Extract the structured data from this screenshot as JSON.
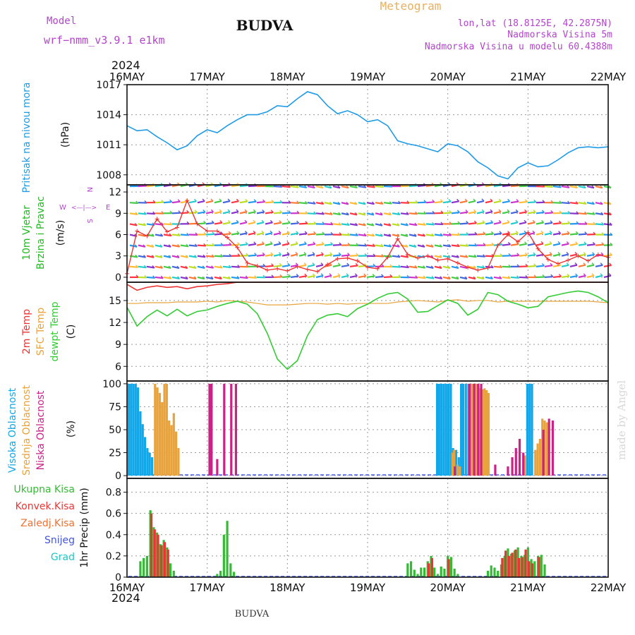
{
  "header": {
    "model_label": "Model",
    "model_name": "wrf−nmm_v3.9.1  e1km",
    "station_title": "BUDVA",
    "meteogram_label": "Meteogram",
    "location": "lon,lat (18.8125E, 42.2875N)",
    "elevation": "Nadmorska Visina 5m",
    "model_elevation": "Nadmorska Visina u modelu 60.4388m",
    "year_top": "2024",
    "year_bottom": "2024",
    "footer_title": "BUDVA",
    "watermark": "made by Angel"
  },
  "dates": [
    "16MAY",
    "17MAY",
    "18MAY",
    "19MAY",
    "20MAY",
    "21MAY",
    "22MAY"
  ],
  "colors": {
    "pressure": "#1e9be6",
    "wind_speed_title": "#22bb22",
    "temp2m": "#ee3333",
    "sfc_temp": "#e8a33c",
    "dewpoint": "#33cc33",
    "high_cloud": "#11a7e8",
    "mid_cloud": "#e8a33c",
    "low_cloud": "#cc2288",
    "total_rain": "#33bb33",
    "conv_rain": "#ee3333",
    "freezing_rain": "#f07030",
    "snow": "#4455dd",
    "hail": "#22c4c4",
    "purple_text": "#b344cc"
  },
  "chart_data": [
    {
      "type": "line",
      "name": "pressure",
      "ylabel": [
        "Pritisak na nivou mora",
        "(hPa)"
      ],
      "yticks": [
        1008,
        1011,
        1014,
        1017
      ],
      "ylim": [
        1007,
        1017
      ],
      "grid": true,
      "x_hours": [
        0,
        3,
        6,
        9,
        12,
        15,
        18,
        21,
        24,
        27,
        30,
        33,
        36,
        39,
        42,
        45,
        48,
        51,
        54,
        57,
        60,
        63,
        66,
        69,
        72,
        75,
        78,
        81,
        84,
        87,
        90,
        93,
        96,
        99,
        102,
        105,
        108,
        111,
        114,
        117,
        120,
        123,
        126,
        129,
        132,
        135,
        138,
        141,
        144
      ],
      "values": [
        1012.9,
        1012.4,
        1012.5,
        1011.8,
        1011.2,
        1010.5,
        1010.9,
        1011.9,
        1012.5,
        1012.2,
        1012.9,
        1013.5,
        1014.0,
        1014.0,
        1014.3,
        1014.9,
        1014.8,
        1015.6,
        1016.3,
        1016.0,
        1014.9,
        1014.1,
        1014.4,
        1014.0,
        1013.3,
        1013.5,
        1012.9,
        1011.4,
        1011.1,
        1010.9,
        1010.6,
        1010.3,
        1011.1,
        1010.9,
        1010.3,
        1009.3,
        1008.7,
        1007.9,
        1007.6,
        1008.7,
        1009.2,
        1008.8,
        1008.9,
        1009.5,
        1010.2,
        1010.7,
        1010.8,
        1010.7,
        1010.8
      ],
      "series": [
        {
          "name": "Pritisak na nivou mora",
          "color_key": "pressure"
        }
      ]
    },
    {
      "type": "line",
      "name": "wind",
      "ylabel": [
        "10m Vjetar",
        "Brzina i Pravac",
        "(m/s)"
      ],
      "compass": [
        "N",
        "W",
        "E",
        "S",
        "<—|—>"
      ],
      "yticks": [
        0,
        3,
        6,
        9,
        12
      ],
      "ylim": [
        -0.7,
        13
      ],
      "grid": true,
      "x_hours": [
        0,
        3,
        6,
        9,
        12,
        15,
        18,
        21,
        24,
        27,
        30,
        33,
        36,
        39,
        42,
        45,
        48,
        51,
        54,
        57,
        60,
        63,
        66,
        69,
        72,
        75,
        78,
        81,
        84,
        87,
        90,
        93,
        96,
        99,
        102,
        105,
        108,
        111,
        114,
        117,
        120,
        123,
        126,
        129,
        132,
        135,
        138,
        141,
        144
      ],
      "values": [
        0.5,
        6.5,
        5.8,
        8.2,
        6.4,
        7.0,
        10.8,
        7.5,
        6.5,
        6.5,
        5.6,
        4.2,
        2.0,
        1.6,
        1.0,
        1.2,
        0.9,
        1.5,
        1.1,
        0.8,
        1.8,
        2.6,
        2.7,
        2.3,
        1.4,
        1.2,
        2.8,
        5.4,
        3.2,
        2.7,
        3.0,
        2.4,
        2.6,
        2.0,
        1.4,
        1.0,
        1.3,
        4.5,
        6.0,
        5.0,
        6.3,
        4.0,
        2.5,
        1.9,
        2.4,
        3.0,
        2.3,
        3.2,
        2.8
      ],
      "series": [
        {
          "name": "10m Vjetar Brzina",
          "color_key": "temp2m"
        }
      ]
    },
    {
      "type": "line",
      "name": "temperature",
      "ylabel": [
        "2m Temp",
        "SFC Temp",
        "dewpt Temp",
        "(C)"
      ],
      "yticks": [
        6,
        9,
        12,
        15
      ],
      "ylim": [
        4,
        17.5
      ],
      "grid": true,
      "x_hours": [
        0,
        3,
        6,
        9,
        12,
        15,
        18,
        21,
        24,
        27,
        30,
        33,
        36,
        39,
        42,
        45,
        48,
        51,
        54,
        57,
        60,
        63,
        66,
        69,
        72,
        75,
        78,
        81,
        84,
        87,
        90,
        93,
        96,
        99,
        102,
        105,
        108,
        111,
        114,
        117,
        120,
        123,
        126,
        129,
        132,
        135,
        138,
        141,
        144
      ],
      "series": [
        {
          "name": "2m Temp",
          "color_key": "temp2m",
          "values": [
            17.2,
            16.4,
            16.8,
            17.0,
            16.8,
            16.9,
            16.6,
            16.9,
            17.0,
            17.2,
            17.3,
            17.5,
            17.5,
            17.5,
            17.5,
            17.5,
            17.5,
            17.5,
            17.5,
            17.5,
            17.5,
            17.5,
            17.5,
            17.5,
            17.5,
            17.5,
            17.5,
            17.5,
            17.5,
            17.5,
            17.5,
            17.5,
            17.5,
            17.5,
            17.5,
            17.5,
            17.5,
            17.5,
            17.5,
            17.5,
            17.5,
            17.5,
            17.5,
            17.5,
            17.5,
            17.5,
            17.5,
            17.5,
            17.5
          ]
        },
        {
          "name": "SFC Temp",
          "color_key": "sfc_temp",
          "values": [
            14.6,
            14.6,
            14.7,
            14.7,
            14.7,
            14.8,
            14.8,
            14.8,
            14.9,
            14.8,
            15.0,
            14.9,
            14.8,
            14.6,
            14.4,
            14.4,
            14.4,
            14.5,
            14.6,
            14.6,
            14.5,
            14.6,
            14.5,
            14.6,
            14.6,
            14.6,
            14.6,
            14.8,
            14.9,
            15.0,
            14.9,
            14.8,
            15.0,
            15.1,
            14.9,
            15.0,
            15.0,
            14.8,
            14.9,
            14.9,
            14.9,
            14.9,
            14.9,
            14.9,
            14.9,
            14.9,
            14.9,
            14.8,
            14.7
          ]
        },
        {
          "name": "dewpt Temp",
          "color_key": "dewpoint",
          "values": [
            14.1,
            11.5,
            12.8,
            13.7,
            12.9,
            13.8,
            12.9,
            13.5,
            13.7,
            14.2,
            14.6,
            14.9,
            14.5,
            13.2,
            10.5,
            7.0,
            5.6,
            6.8,
            10.2,
            12.4,
            13.0,
            13.2,
            12.8,
            13.9,
            14.5,
            15.3,
            15.9,
            16.1,
            15.2,
            13.4,
            13.5,
            14.3,
            15.1,
            14.6,
            13.0,
            13.8,
            16.1,
            15.8,
            14.9,
            14.5,
            14.0,
            14.2,
            15.5,
            15.8,
            16.1,
            16.3,
            16.1,
            15.5,
            14.7
          ]
        }
      ]
    },
    {
      "type": "bar",
      "name": "clouds",
      "ylabel": [
        "Visoka Oblacnost",
        "Srednja Oblacnost",
        "Niska Oblacnost",
        "(%)"
      ],
      "yticks": [
        0,
        25,
        50,
        75,
        100
      ],
      "ylim": [
        -3,
        103
      ],
      "grid": true,
      "series": [
        {
          "name": "Visoka Oblacnost",
          "color_key": "high_cloud",
          "x_hours": [
            0.5,
            1.2,
            1.9,
            2.6,
            3.3,
            4.0,
            4.7,
            5.4,
            6.1,
            6.8,
            7.5,
            92.8,
            93.4,
            94.1,
            94.8,
            95.5,
            96.2,
            96.9,
            97.6,
            98.5,
            99.3,
            100.0,
            100.6,
            101.4,
            102.2,
            103.0,
            119.8,
            120.5,
            121.2
          ],
          "values": [
            100,
            100,
            100,
            100,
            96,
            70,
            56,
            42,
            30,
            25,
            20,
            100,
            100,
            100,
            100,
            100,
            100,
            100,
            30,
            28,
            20,
            100,
            100,
            100,
            100,
            100,
            100,
            100,
            100
          ]
        },
        {
          "name": "Srednja Oblacnost",
          "color_key": "mid_cloud",
          "x_hours": [
            8.4,
            9.1,
            9.8,
            10.5,
            11.2,
            11.9,
            12.6,
            13.3,
            14.0,
            14.7,
            15.4,
            97.4,
            97.9,
            98.9,
            99.6,
            102.8,
            103.4,
            104.0,
            104.6,
            105.2,
            105.8,
            106.4,
            107.0,
            107.6,
            108.2,
            119.1,
            122.2,
            122.9,
            123.6,
            124.3,
            125.0,
            125.7
          ],
          "values": [
            100,
            96,
            90,
            80,
            100,
            100,
            60,
            55,
            68,
            48,
            30,
            25,
            28,
            12,
            10,
            100,
            100,
            100,
            100,
            98,
            95,
            94,
            95,
            93,
            90,
            22,
            28,
            35,
            40,
            62,
            60,
            58
          ]
        },
        {
          "name": "Niska Oblacnost",
          "color_key": "low_cloud",
          "x_hours": [
            24.7,
            25.3,
            27.0,
            29.1,
            31.2,
            32.6,
            98.1,
            102.5,
            103.9,
            105.1,
            106.0,
            110.2,
            114.0,
            115.3,
            116.4,
            117.5,
            118.6,
            124.6,
            126.3,
            127.4
          ],
          "values": [
            100,
            100,
            18,
            100,
            100,
            100,
            10,
            100,
            100,
            100,
            100,
            12,
            10,
            20,
            30,
            40,
            25,
            50,
            62,
            60
          ]
        }
      ],
      "rug_color_key": "snow"
    },
    {
      "type": "bar",
      "name": "precipitation",
      "ylabel": [
        "1hr Precip (mm)"
      ],
      "legend": [
        "Ukupna  Kisa",
        "Konvek.Kisa",
        "Zaledj.Kisa",
        "Snijeg",
        "Grad"
      ],
      "yticks": [
        0,
        0.2,
        0.4,
        0.6,
        0.8
      ],
      "ylim": [
        0,
        0.93
      ],
      "grid": true,
      "series": [
        {
          "name": "Ukupna  Kisa",
          "color_key": "total_rain",
          "x_hours": [
            4.0,
            5.0,
            6.0,
            7.0,
            8.0,
            9.0,
            10.0,
            11.0,
            12.0,
            13.0,
            14.0,
            27.0,
            28.0,
            29.0,
            30.0,
            31.0,
            32.0,
            84.0,
            85.0,
            86.0,
            87.0,
            88.0,
            89.0,
            90.0,
            91.0,
            92.0,
            93.0,
            94.0,
            95.0,
            96.0,
            97.0,
            98.0,
            99.0,
            108.0,
            109.0,
            110.0,
            111.0,
            112.0,
            113.0,
            114.0,
            115.0,
            116.0,
            117.0,
            118.0,
            119.0,
            120.0,
            121.0,
            122.0,
            123.0,
            124.0,
            125.0
          ],
          "values": [
            0.15,
            0.18,
            0.2,
            0.63,
            0.47,
            0.42,
            0.31,
            0.35,
            0.28,
            0.13,
            0.06,
            0.03,
            0.06,
            0.4,
            0.53,
            0.13,
            0.05,
            0.13,
            0.15,
            0.07,
            0.03,
            0.09,
            0.09,
            0.15,
            0.2,
            0.09,
            0.03,
            0.1,
            0.08,
            0.2,
            0.19,
            0.08,
            0.03,
            0.06,
            0.11,
            0.09,
            0.06,
            0.12,
            0.2,
            0.27,
            0.22,
            0.25,
            0.28,
            0.2,
            0.21,
            0.28,
            0.17,
            0.15,
            0.2,
            0.21,
            0.12
          ]
        },
        {
          "name": "Konvek.Kisa",
          "color_key": "conv_rain",
          "x_hours": [
            7.3,
            8.3,
            9.3,
            10.3,
            11.3,
            12.3,
            90.3,
            91.3,
            96.3,
            112.3,
            113.3,
            114.3,
            115.3,
            116.3,
            117.3,
            118.3,
            119.3,
            120.3,
            121.3,
            123.3
          ],
          "values": [
            0.6,
            0.45,
            0.4,
            0.3,
            0.33,
            0.26,
            0.13,
            0.18,
            0.17,
            0.18,
            0.25,
            0.2,
            0.23,
            0.26,
            0.18,
            0.19,
            0.26,
            0.15,
            0.13,
            0.19
          ]
        }
      ],
      "rug_color_key": "snow"
    }
  ],
  "wind_field": {
    "rows": [
      0,
      1.5,
      3,
      4.5,
      6,
      7.5,
      9,
      10.5,
      12.8
    ],
    "note_colors": [
      "#ff3344",
      "#ff7733",
      "#ffbb33",
      "#bbdd22",
      "#44cc44",
      "#22cccc",
      "#2299ee",
      "#4466dd",
      "#8833cc",
      "#cc33cc"
    ]
  }
}
